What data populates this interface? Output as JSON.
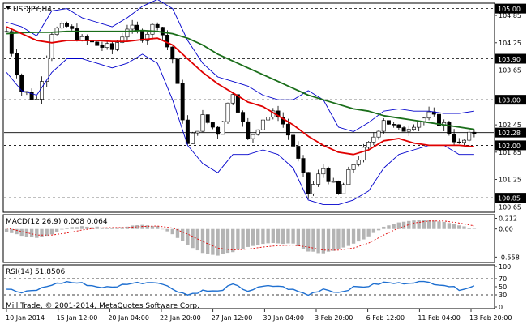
{
  "window": {
    "symbol_label": "USDJPY,H4"
  },
  "copyright": "Mill Trade, © 2001-2014, MetaQuotes Software Corp.",
  "colors": {
    "background": "#ffffff",
    "frame": "#000000",
    "grid_line": "#000000",
    "candle": "#000000",
    "bollinger": "#0000cc",
    "ma_fast": "#e00000",
    "ma_slow": "#1a6e1a",
    "macd_hist": "#b4b4b4",
    "macd_signal": "#e00000",
    "rsi_line": "#1e6fd0",
    "level_label_bg": "#000000",
    "level_label_fg": "#ffffff"
  },
  "chart_data": [
    {
      "type": "line",
      "panel": "price",
      "y_ticks": [
        "104.85",
        "104.25",
        "103.65",
        "102.45",
        "101.85",
        "101.25",
        "100.65"
      ],
      "levels": [
        {
          "value": 105.0,
          "label": "105.00",
          "style": "dashed"
        },
        {
          "value": 103.9,
          "label": "103.90",
          "style": "dashed"
        },
        {
          "value": 103.0,
          "label": "103.00",
          "style": "dashed"
        },
        {
          "value": 102.28,
          "label": "102.28",
          "style": "solid"
        },
        {
          "value": 102.0,
          "label": "102.00",
          "style": "dashed"
        },
        {
          "value": 100.85,
          "label": "100.85",
          "style": "dashed"
        }
      ],
      "ylim": [
        100.55,
        105.1
      ],
      "price_path": [
        104.5,
        103.2,
        103.0,
        104.5,
        104.6,
        104.3,
        104.2,
        104.1,
        104.6,
        104.4,
        104.7,
        103.9,
        102.0,
        102.6,
        102.3,
        103.2,
        102.1,
        102.6,
        102.7,
        102.0,
        100.95,
        101.5,
        100.9,
        101.6,
        102.0,
        102.6,
        102.3,
        102.5,
        102.65,
        102.45,
        102.0,
        102.28
      ],
      "bollinger_upper": [
        104.7,
        104.6,
        104.4,
        104.95,
        105.0,
        104.8,
        104.7,
        104.6,
        104.8,
        105.05,
        105.2,
        105.0,
        104.3,
        103.8,
        103.5,
        103.4,
        103.3,
        103.1,
        103.0,
        103.0,
        103.2,
        103.0,
        102.4,
        102.3,
        102.5,
        102.75,
        102.8,
        102.75,
        102.75,
        102.7,
        102.7,
        102.75
      ],
      "bollinger_lower": [
        103.6,
        103.2,
        103.1,
        103.6,
        103.9,
        103.9,
        103.8,
        103.7,
        103.8,
        104.0,
        103.8,
        103.0,
        102.0,
        101.6,
        101.4,
        101.8,
        101.8,
        101.9,
        101.8,
        101.5,
        100.8,
        100.7,
        100.7,
        100.8,
        101.0,
        101.5,
        101.8,
        101.9,
        102.0,
        102.0,
        101.8,
        101.8
      ],
      "ma_fast": [
        104.6,
        104.45,
        104.3,
        104.25,
        104.3,
        104.3,
        104.3,
        104.28,
        104.28,
        104.32,
        104.35,
        104.2,
        103.9,
        103.6,
        103.35,
        103.15,
        102.95,
        102.85,
        102.65,
        102.45,
        102.2,
        102.0,
        101.85,
        101.8,
        101.9,
        102.1,
        102.15,
        102.05,
        102.0,
        102.0,
        102.0,
        101.97
      ],
      "ma_slow": [
        104.45,
        104.47,
        104.48,
        104.48,
        104.5,
        104.5,
        104.5,
        104.5,
        104.5,
        104.52,
        104.5,
        104.45,
        104.35,
        104.2,
        104.0,
        103.85,
        103.7,
        103.55,
        103.4,
        103.25,
        103.1,
        103.0,
        102.9,
        102.8,
        102.75,
        102.65,
        102.6,
        102.55,
        102.5,
        102.45,
        102.4,
        102.35
      ]
    },
    {
      "type": "bar",
      "panel": "macd",
      "label": "MACD(12,26,9) 0.008 0.064",
      "y_ticks": [
        "0.212",
        "0.00",
        "-0.558"
      ],
      "ylim": [
        -0.65,
        0.27
      ],
      "histogram": [
        -0.05,
        -0.14,
        -0.18,
        -0.1,
        0.02,
        0.05,
        0.04,
        0.02,
        0.05,
        0.08,
        0.06,
        -0.1,
        -0.32,
        -0.48,
        -0.52,
        -0.45,
        -0.35,
        -0.3,
        -0.28,
        -0.3,
        -0.45,
        -0.48,
        -0.4,
        -0.3,
        -0.15,
        0.05,
        0.14,
        0.17,
        0.18,
        0.15,
        0.08,
        0.008
      ],
      "signal": [
        0.02,
        -0.05,
        -0.12,
        -0.12,
        -0.08,
        -0.02,
        0.02,
        0.03,
        0.03,
        0.05,
        0.06,
        0.02,
        -0.1,
        -0.25,
        -0.38,
        -0.42,
        -0.4,
        -0.36,
        -0.33,
        -0.32,
        -0.36,
        -0.42,
        -0.42,
        -0.38,
        -0.28,
        -0.12,
        0.02,
        0.12,
        0.16,
        0.16,
        0.12,
        0.064
      ]
    },
    {
      "type": "line",
      "panel": "rsi",
      "label": "RSI(14) 51.8506",
      "y_ticks": [
        "100",
        "70",
        "50",
        "30",
        "0"
      ],
      "ylim": [
        0,
        100
      ],
      "levels": [
        70,
        30
      ],
      "values": [
        45,
        35,
        42,
        55,
        62,
        58,
        50,
        48,
        58,
        60,
        62,
        45,
        30,
        40,
        38,
        55,
        40,
        50,
        52,
        42,
        30,
        45,
        36,
        48,
        52,
        60,
        58,
        62,
        60,
        55,
        44,
        51.85
      ]
    }
  ],
  "x_axis": {
    "labels": [
      "10 Jan 2014",
      "15 Jan 12:00",
      "20 Jan 04:00",
      "22 Jan 20:00",
      "27 Jan 12:00",
      "30 Jan 04:00",
      "3 Feb 20:00",
      "6 Feb 12:00",
      "11 Feb 04:00",
      "13 Feb 20:00"
    ]
  }
}
